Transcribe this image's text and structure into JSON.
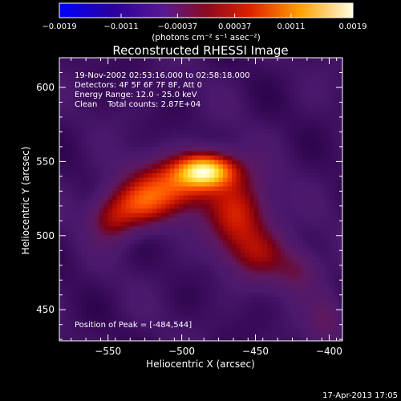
{
  "chart_data": {
    "type": "heatmap",
    "title": "Reconstructed RHESSI Image",
    "xlabel": "Heliocentric X (arcsec)",
    "ylabel": "Heliocentric Y (arcsec)",
    "xlim": [
      -583,
      -391
    ],
    "ylim": [
      429,
      620
    ],
    "x_ticks": [
      -550,
      -500,
      -450,
      -400
    ],
    "x_tick_labels": [
      "−550",
      "−500",
      "−450",
      "−400"
    ],
    "y_ticks": [
      450,
      500,
      550,
      600
    ],
    "y_tick_labels": [
      "450",
      "500",
      "550",
      "600"
    ],
    "colorbar": {
      "range": [
        -0.0019,
        0.0019
      ],
      "ticks": [
        -0.0019,
        -0.0011,
        -0.00037,
        0.00037,
        0.0011,
        0.0019
      ],
      "tick_labels": [
        "−0.0019",
        "−0.0011",
        "−0.00037",
        "0.00037",
        "0.0011",
        "0.0019"
      ],
      "unit_label": "(photons cm⁻² s⁻¹ asec⁻²)",
      "colors": [
        "#0000ff",
        "#30008a",
        "#5a1a8f",
        "#9b1010",
        "#ff4a00",
        "#ffd000",
        "#ffffe0"
      ]
    },
    "annotations": [
      "19-Nov-2002 02:53:16.000 to 02:58:18.000",
      "Detectors: 4F 5F 6F 7F 8F, Att 0",
      "Energy Range: 12.0 - 25.0 keV",
      "Clean    Total counts: 2.87E+04"
    ],
    "peak_text": "Position of Peak = [-484,544]",
    "peak": {
      "x": -484,
      "y": 544,
      "value": 0.0019
    },
    "sources": [
      {
        "x": -484,
        "y": 544,
        "sx": 14,
        "sy": 8,
        "amp": 1.0
      },
      {
        "x": -510,
        "y": 532,
        "sx": 20,
        "sy": 12,
        "amp": 0.55
      },
      {
        "x": -462,
        "y": 515,
        "sx": 14,
        "sy": 18,
        "amp": 0.5
      },
      {
        "x": -530,
        "y": 520,
        "sx": 14,
        "sy": 10,
        "amp": 0.4
      },
      {
        "x": -445,
        "y": 488,
        "sx": 14,
        "sy": 12,
        "amp": 0.3
      },
      {
        "x": -548,
        "y": 510,
        "sx": 10,
        "sy": 10,
        "amp": 0.3
      },
      {
        "x": -420,
        "y": 476,
        "sx": 10,
        "sy": 10,
        "amp": 0.22
      },
      {
        "x": -402,
        "y": 445,
        "sx": 8,
        "sy": 12,
        "amp": 0.18
      }
    ],
    "grid": false
  },
  "footer": {
    "timestamp": "17-Apr-2013 17:05"
  }
}
